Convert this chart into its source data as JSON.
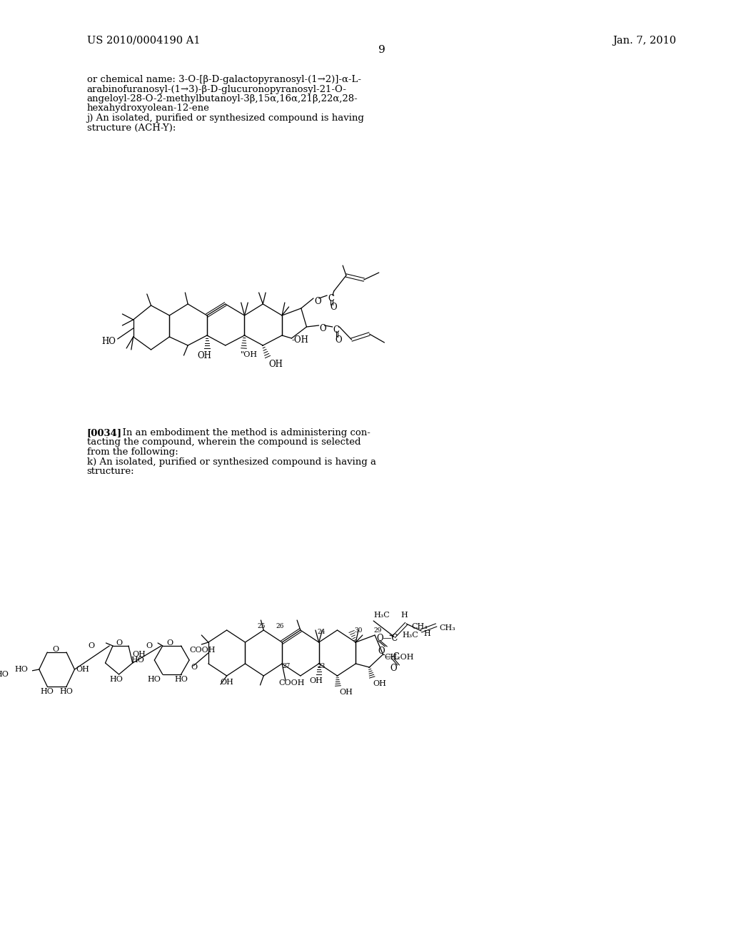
{
  "background": "#ffffff",
  "header_left": "US 2010/0004190 A1",
  "header_right": "Jan. 7, 2010",
  "page_num": "9",
  "body_lines_1": [
    "or chemical name: 3-O-[β-D-galactopyranosyl-(1→2)]-α-L-",
    "arabinofuranosyl-(1→3)-β-D-glucuronopyranosyl-21-O-",
    "angeloyl-28-O-2-methylbutanoyl-3β,15α,16α,21β,22α,28-",
    "hexahydroxyolean-12-ene",
    "j) An isolated, purified or synthesized compound is having",
    "structure (ACH-Y):"
  ],
  "body_para_2_bold": "[0034]",
  "body_para_2_rest": [
    "  In an embodiment the method is administering con-",
    "tacting the compound, wherein the compound is selected",
    "from the following:",
    "k) An isolated, purified or synthesized compound is having a",
    "structure:"
  ]
}
